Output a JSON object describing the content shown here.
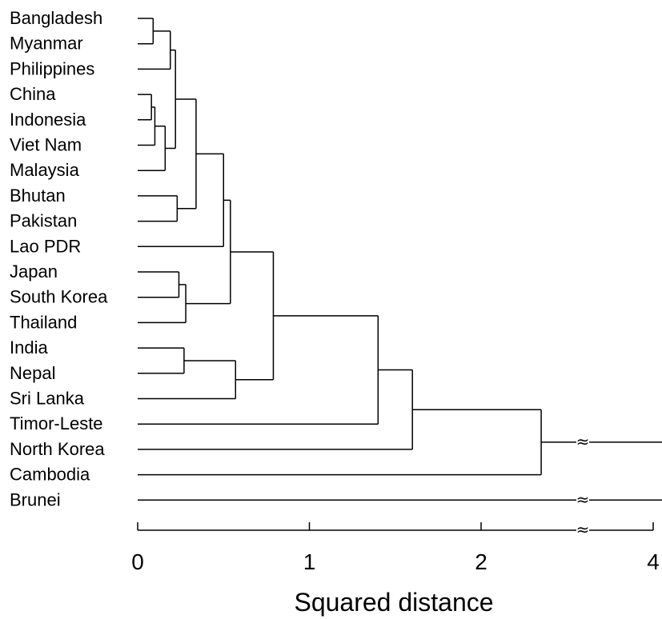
{
  "leaves": [
    "Bangladesh",
    "Myanmar",
    "Philippines",
    "China",
    "Indonesia",
    "Viet Nam",
    "Malaysia",
    "Bhutan",
    "Pakistan",
    "Lao PDR",
    "Japan",
    "South Korea",
    "Thailand",
    "India",
    "Nepal",
    "Sri Lanka",
    "Timor-Leste",
    "North Korea",
    "Cambodia",
    "Brunei"
  ],
  "merges": [
    {
      "left": 0,
      "right": 1,
      "height": 0.09
    },
    {
      "left": 3,
      "right": 4,
      "height": 0.08
    },
    {
      "left": 21,
      "right": 5,
      "height": 0.1
    },
    {
      "left": 22,
      "right": 6,
      "height": 0.16
    },
    {
      "left": 20,
      "right": 2,
      "height": 0.19
    },
    {
      "left": 24,
      "right": 23,
      "height": 0.22
    },
    {
      "left": 7,
      "right": 8,
      "height": 0.23
    },
    {
      "left": 25,
      "right": 26,
      "height": 0.34
    },
    {
      "left": 27,
      "right": 9,
      "height": 0.5
    },
    {
      "left": 10,
      "right": 11,
      "height": 0.24
    },
    {
      "left": 29,
      "right": 12,
      "height": 0.28
    },
    {
      "left": 28,
      "right": 30,
      "height": 0.54
    },
    {
      "left": 13,
      "right": 14,
      "height": 0.27
    },
    {
      "left": 32,
      "right": 15,
      "height": 0.57
    },
    {
      "left": 31,
      "right": 33,
      "height": 0.79
    },
    {
      "left": 34,
      "right": 16,
      "height": 1.4
    },
    {
      "left": 35,
      "right": 17,
      "height": 1.6
    },
    {
      "left": 36,
      "right": 18,
      "height": 2.35
    },
    {
      "left": 37,
      "right": 19,
      "height": 3.85
    }
  ],
  "axis": {
    "title": "Squared distance",
    "ticks": [
      {
        "label": "0",
        "value": 0
      },
      {
        "label": "1",
        "value": 1
      },
      {
        "label": "2",
        "value": 2
      },
      {
        "label": "4",
        "value": 4
      }
    ],
    "break_between": [
      3.5,
      3.75
    ],
    "break_symbol": "≈"
  }
}
